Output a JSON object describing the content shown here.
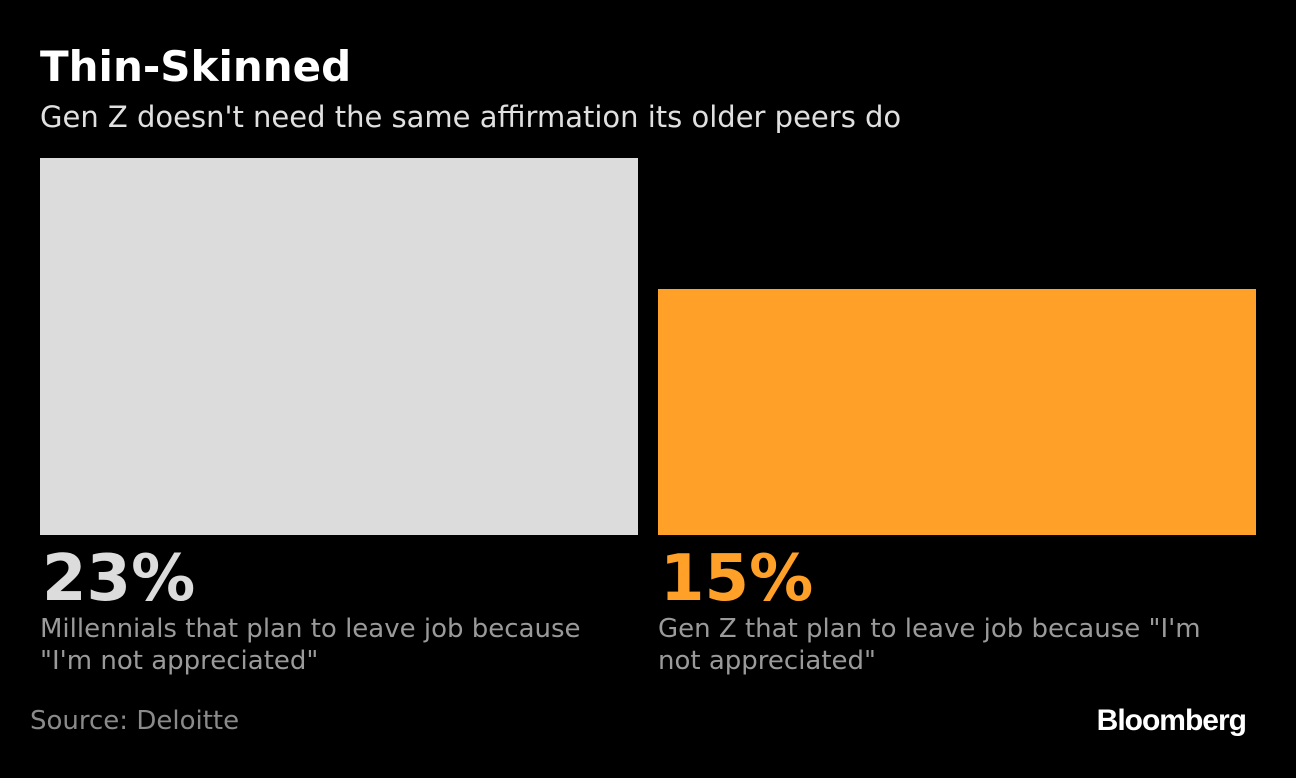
{
  "title": "Thin-Skinned",
  "subtitle": "Gen Z doesn't need the same affirmation its older peers do",
  "chart_data": {
    "type": "bar",
    "categories": [
      "Millennials that plan to leave job because \"I'm not appreciated\"",
      "Gen Z that plan to leave job because \"I'm not appreciated\""
    ],
    "values": [
      23,
      15
    ],
    "value_labels": [
      "23%",
      "15%"
    ],
    "colors": [
      "#dcdcdc",
      "#ffa028"
    ]
  },
  "source": "Source: Deloitte",
  "brand": "Bloomberg"
}
